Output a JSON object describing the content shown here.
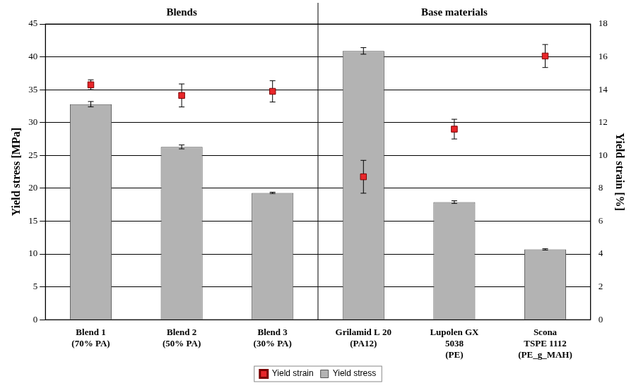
{
  "chart_data": {
    "type": "bar",
    "categories": [
      [
        "Blend 1",
        "(70% PA)"
      ],
      [
        "Blend 2",
        "(50% PA)"
      ],
      [
        "Blend 3",
        "(30% PA)"
      ],
      [
        "Grilamid L 20",
        "(PA12)"
      ],
      [
        "Lupolen GX",
        "5038",
        "(PE)"
      ],
      [
        "Scona",
        "TSPE 1112",
        "(PE_g_MAH)"
      ]
    ],
    "groups": [
      {
        "name": "Blends",
        "size": 3
      },
      {
        "name": "Base materials",
        "size": 3
      }
    ],
    "ylabel": "Yield stress [MPa]",
    "y2label": "Yield strain [%]",
    "ylim": [
      0,
      45
    ],
    "yticks": [
      0,
      5,
      10,
      15,
      20,
      25,
      30,
      35,
      40,
      45
    ],
    "y2lim": [
      0,
      18
    ],
    "y2ticks": [
      0,
      2,
      4,
      6,
      8,
      10,
      12,
      14,
      16,
      18
    ],
    "grid": true,
    "legend": "bottom",
    "series": [
      {
        "name": "Yield stress",
        "type": "bar",
        "color": "#b3b3b3",
        "values": [
          32.8,
          26.3,
          19.3,
          40.9,
          17.9,
          10.7
        ],
        "errors": [
          0.4,
          0.3,
          0.1,
          0.5,
          0.2,
          0.1
        ]
      },
      {
        "name": "Yield strain",
        "type": "scatter",
        "axis": "y2",
        "color": "#e8262a",
        "marker": "square",
        "values": [
          14.3,
          13.65,
          13.9,
          8.7,
          11.6,
          16.05
        ],
        "errors": [
          0.3,
          0.7,
          0.65,
          1.0,
          0.6,
          0.7
        ]
      }
    ]
  }
}
